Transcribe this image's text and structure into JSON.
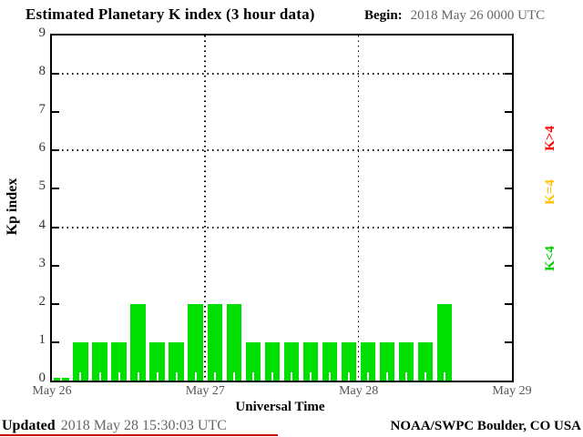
{
  "title": "Estimated Planetary K index (3 hour data)",
  "begin": {
    "label": "Begin:",
    "value": "2018 May 26 0000 UTC"
  },
  "axis": {
    "xlabel": "Universal Time",
    "ylabel": "Kp index"
  },
  "legend": {
    "items": [
      {
        "label": "K>4",
        "color": "#ff0000"
      },
      {
        "label": "K=4",
        "color": "#ffc000"
      },
      {
        "label": "K<4",
        "color": "#00cc00"
      }
    ]
  },
  "footer": {
    "updated_label": "Updated",
    "updated_value": "2018 May 28 15:30:03 UTC",
    "credit": "NOAA/SWPC Boulder, CO USA",
    "underline_color": "#d40000"
  },
  "chart_data": {
    "type": "bar",
    "title": "Estimated Planetary K index (3 hour data)",
    "xlabel": "Universal Time",
    "ylabel": "Kp index",
    "ylim": [
      0,
      9
    ],
    "y_ticks": [
      0,
      1,
      2,
      3,
      4,
      5,
      6,
      7,
      8,
      9
    ],
    "x_tick_labels": [
      "May 26",
      "May 27",
      "May 28",
      "May 29"
    ],
    "x_slots": 24,
    "interval_hours": 3,
    "gridlines_kp": [
      4,
      6,
      8
    ],
    "grid_style": "dotted",
    "bar_color": "#00e000",
    "values": [
      0,
      1,
      1,
      1,
      2,
      1,
      1,
      2,
      2,
      2,
      1,
      1,
      1,
      1,
      1,
      1,
      1,
      1,
      1,
      1,
      2
    ]
  }
}
